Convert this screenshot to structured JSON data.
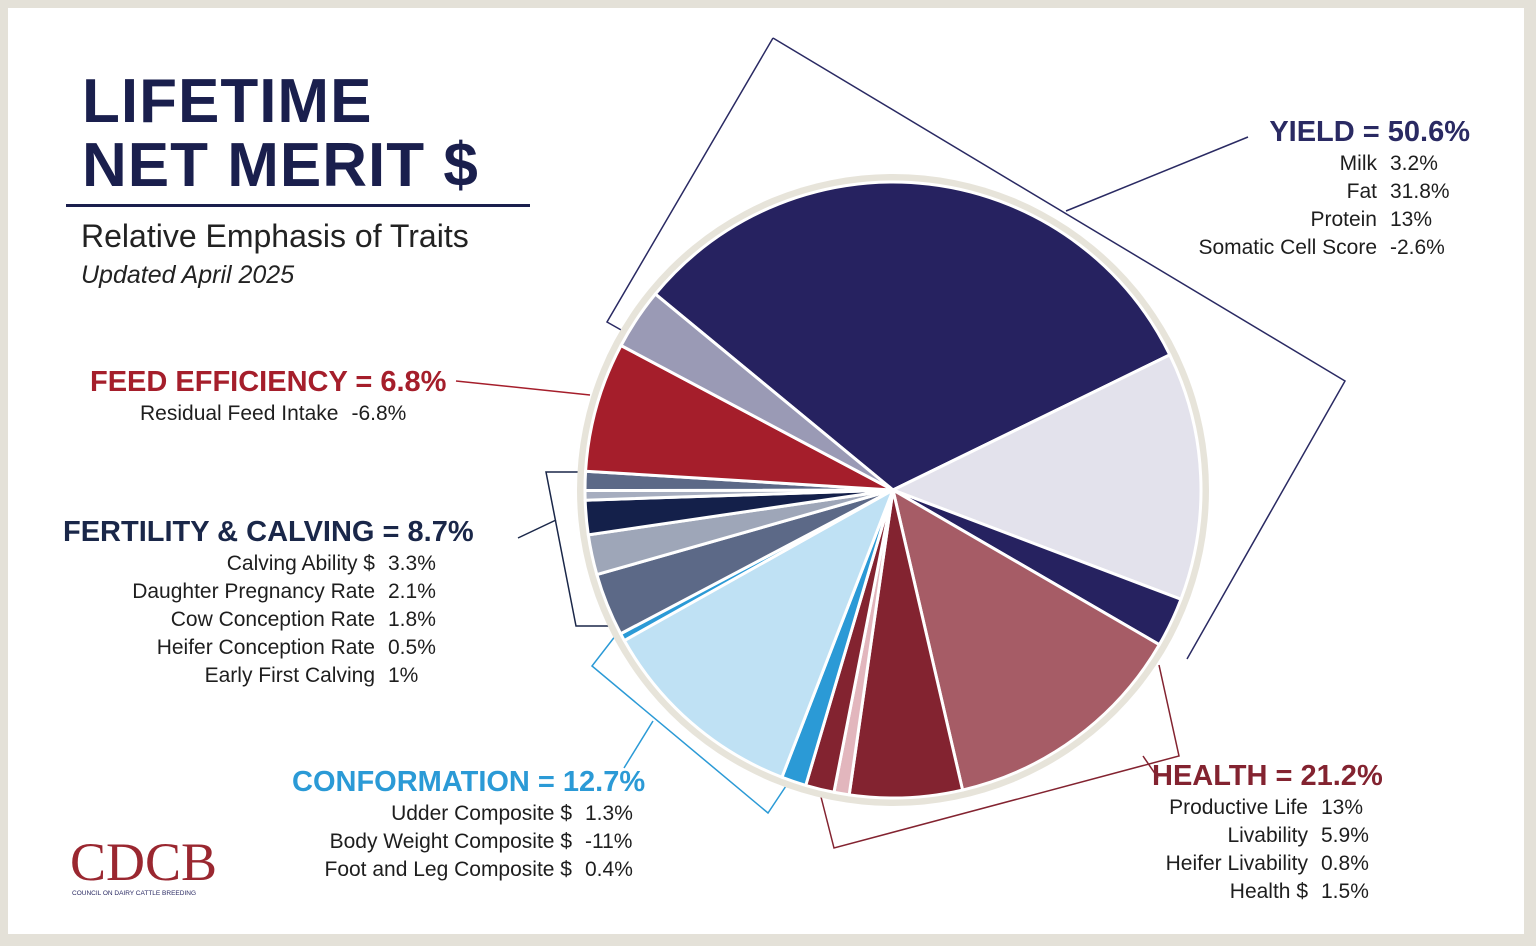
{
  "title_lines": [
    "LIFETIME",
    "NET MERIT $"
  ],
  "subtitle": "Relative Emphasis of Traits",
  "updated": "Updated April 2025",
  "logo": {
    "text": "CDCB",
    "tagline": "COUNCIL ON DAIRY CATTLE BREEDING"
  },
  "colors": {
    "yield": "#2a2a63",
    "health": "#832330",
    "feed": "#a51e2b",
    "fertility": "#1a2749",
    "conformation": "#2b9ad6",
    "rim": "#e7e4da"
  },
  "groups": {
    "yield": {
      "label": "YIELD = 50.6%",
      "traits": [
        {
          "name": "Milk",
          "value": "3.2%"
        },
        {
          "name": "Fat",
          "value": "31.8%"
        },
        {
          "name": "Protein",
          "value": "13%"
        },
        {
          "name": "Somatic Cell Score",
          "value": "-2.6%"
        }
      ]
    },
    "feed": {
      "label": "FEED EFFICIENCY = 6.8%",
      "traits": [
        {
          "name": "Residual Feed Intake",
          "value": "-6.8%"
        }
      ]
    },
    "fertility": {
      "label": "FERTILITY & CALVING = 8.7%",
      "traits": [
        {
          "name": "Calving Ability $",
          "value": "3.3%"
        },
        {
          "name": "Daughter Pregnancy Rate",
          "value": "2.1%"
        },
        {
          "name": "Cow Conception Rate",
          "value": "1.8%"
        },
        {
          "name": "Heifer Conception Rate",
          "value": "0.5%"
        },
        {
          "name": "Early First Calving",
          "value": "1%"
        }
      ]
    },
    "conformation": {
      "label": "CONFORMATION = 12.7%",
      "traits": [
        {
          "name": "Udder Composite $",
          "value": "1.3%"
        },
        {
          "name": "Body Weight Composite $",
          "value": "-11%"
        },
        {
          "name": "Foot and Leg Composite $",
          "value": "0.4%"
        }
      ]
    },
    "health": {
      "label": "HEALTH = 21.2%",
      "traits": [
        {
          "name": "Productive Life",
          "value": "13%"
        },
        {
          "name": "Livability",
          "value": "5.9%"
        },
        {
          "name": "Heifer Livability",
          "value": "0.8%"
        },
        {
          "name": "Health $",
          "value": "1.5%"
        }
      ]
    }
  },
  "chart_data": {
    "type": "pie",
    "title": "LIFETIME NET MERIT $",
    "slices": [
      {
        "group": "yield",
        "trait": "Fat",
        "value": 31.8,
        "color": "#262260"
      },
      {
        "group": "yield",
        "trait": "Protein",
        "value": 13,
        "color": "#e3e2ec"
      },
      {
        "group": "yield",
        "trait": "Somatic Cell Score",
        "value": 2.6,
        "color": "#262260"
      },
      {
        "group": "health",
        "trait": "Productive Life",
        "value": 13,
        "color": "#a65c66"
      },
      {
        "group": "health",
        "trait": "Livability",
        "value": 5.9,
        "color": "#832330"
      },
      {
        "group": "health",
        "trait": "Heifer Livability",
        "value": 0.8,
        "color": "#e2b6bd"
      },
      {
        "group": "health",
        "trait": "Health $",
        "value": 1.5,
        "color": "#832330"
      },
      {
        "group": "conformation",
        "trait": "Udder Composite $",
        "value": 1.3,
        "color": "#2b9ad6"
      },
      {
        "group": "conformation",
        "trait": "Body Weight Composite $",
        "value": 11,
        "color": "#bfe1f4"
      },
      {
        "group": "conformation",
        "trait": "Foot and Leg Composite $",
        "value": 0.4,
        "color": "#2b9ad6"
      },
      {
        "group": "fertility",
        "trait": "Calving Ability $",
        "value": 3.3,
        "color": "#5c6987"
      },
      {
        "group": "fertility",
        "trait": "Daughter Pregnancy Rate",
        "value": 2.1,
        "color": "#9ea6b8"
      },
      {
        "group": "fertility",
        "trait": "Cow Conception Rate",
        "value": 1.8,
        "color": "#14204a"
      },
      {
        "group": "fertility",
        "trait": "Heifer Conception Rate",
        "value": 0.5,
        "color": "#a6adbf"
      },
      {
        "group": "fertility",
        "trait": "Early First Calving",
        "value": 1,
        "color": "#5c6987"
      },
      {
        "group": "feed",
        "trait": "Residual Feed Intake",
        "value": 6.8,
        "color": "#a51e2b"
      },
      {
        "group": "yield",
        "trait": "Milk",
        "value": 3.2,
        "color": "#9a9ab5"
      }
    ]
  }
}
